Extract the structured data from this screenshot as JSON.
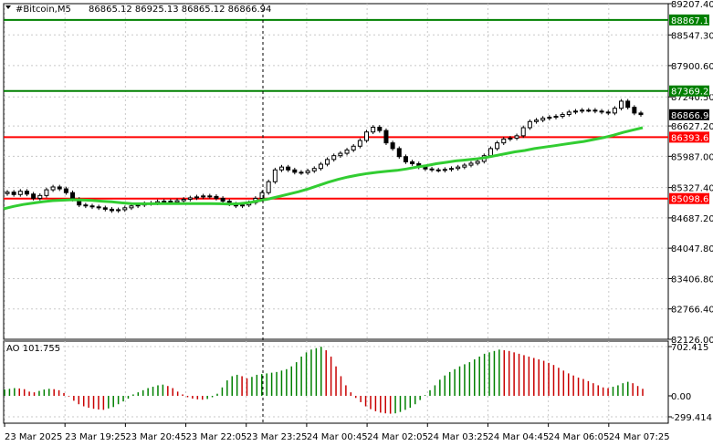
{
  "header": {
    "symbol": "#Bitcoin,M5",
    "ohlc": "86865.12 86925.13 86865.12 86866.94"
  },
  "colors": {
    "background": "#ffffff",
    "grid": "#c8c8c8",
    "frame": "#000000",
    "candle": "#000000",
    "moving_average": "#32cd32",
    "support_resistance": "#ff0000",
    "upper_levels": "#008000",
    "ao_up": "#008000",
    "ao_down": "#c80000",
    "price_label_text": "#ffffff"
  },
  "chart_data": [
    {
      "type": "candlestick",
      "title": "#Bitcoin,M5",
      "yticks": [
        "89207.40",
        "88547.30",
        "87900.60",
        "87240.50",
        "86627.20",
        "85987.00",
        "85327.40",
        "84687.20",
        "84047.80",
        "83406.80",
        "82766.40",
        "82126.00"
      ],
      "ylim": [
        82126.0,
        89207.4
      ],
      "grid": true,
      "price_labels": [
        {
          "text": "88867.19",
          "value": 88867.19,
          "kind": "level",
          "color": "#008000"
        },
        {
          "text": "87369.28",
          "value": 87369.28,
          "kind": "level",
          "color": "#008000"
        },
        {
          "text": "86866.94",
          "value": 86866.94,
          "kind": "current",
          "color": "#000000"
        },
        {
          "text": "86393.65",
          "value": 86393.65,
          "kind": "level",
          "color": "#ff0000"
        },
        {
          "text": "85098.61",
          "value": 85098.61,
          "kind": "level",
          "color": "#ff0000"
        }
      ],
      "series": [
        {
          "kind": "close_price",
          "values": [
            85230,
            85180,
            85250,
            85190,
            85100,
            85160,
            85280,
            85340,
            85300,
            85220,
            85080,
            84960,
            84940,
            84920,
            84900,
            84870,
            84840,
            84860,
            84900,
            84940,
            84960,
            84990,
            85000,
            85030,
            85040,
            85020,
            85050,
            85080,
            85110,
            85130,
            85150,
            85140,
            85100,
            85040,
            84980,
            84940,
            84960,
            85010,
            85100,
            85220,
            85450,
            85700,
            85760,
            85700,
            85650,
            85640,
            85680,
            85730,
            85820,
            85920,
            86000,
            86050,
            86120,
            86200,
            86320,
            86500,
            86600,
            86530,
            86270,
            86150,
            85980,
            85870,
            85830,
            85760,
            85720,
            85700,
            85690,
            85710,
            85730,
            85760,
            85800,
            85840,
            85880,
            86000,
            86150,
            86270,
            86350,
            86370,
            86420,
            86590,
            86720,
            86750,
            86790,
            86810,
            86830,
            86870,
            86920,
            86940,
            86960,
            86960,
            86940,
            86920,
            86900,
            87000,
            87150,
            87020,
            86900,
            86866.94
          ]
        },
        {
          "kind": "moving_average",
          "values": [
            84880,
            84930,
            84970,
            85000,
            85030,
            85050,
            85060,
            85070,
            85065,
            85055,
            85040,
            85025,
            85005,
            84990,
            84985,
            84985,
            84990,
            84990,
            84990,
            84990,
            84990,
            84990,
            84985,
            84980,
            84990,
            85010,
            85050,
            85090,
            85140,
            85190,
            85240,
            85300,
            85370,
            85440,
            85500,
            85550,
            85590,
            85625,
            85650,
            85670,
            85690,
            85720,
            85760,
            85790,
            85830,
            85860,
            85890,
            85910,
            85930,
            85960,
            86000,
            86040,
            86080,
            86110,
            86150,
            86180,
            86210,
            86240,
            86270,
            86300,
            86340,
            86380,
            86430,
            86490,
            86540,
            86590
          ]
        }
      ]
    },
    {
      "type": "bar",
      "title": "AO 101.755",
      "yticks": [
        "702.415",
        "0.00",
        "-299.414"
      ],
      "ylim": [
        -299.414,
        702.415
      ],
      "xticks": [
        "23 Mar 2025",
        "23 Mar 19:25",
        "23 Mar 20:45",
        "23 Mar 22:05",
        "23 Mar 23:25",
        "24 Mar 00:45",
        "24 Mar 02:05",
        "24 Mar 03:25",
        "24 Mar 04:45",
        "24 Mar 06:05",
        "24 Mar 07:25"
      ],
      "values": [
        90,
        100,
        110,
        105,
        95,
        60,
        50,
        70,
        90,
        100,
        95,
        80,
        40,
        -10,
        -70,
        -120,
        -150,
        -170,
        -185,
        -195,
        -200,
        -180,
        -160,
        -120,
        -80,
        -40,
        20,
        50,
        80,
        110,
        130,
        150,
        160,
        140,
        110,
        60,
        20,
        -20,
        -40,
        -50,
        -55,
        -45,
        -20,
        30,
        120,
        220,
        280,
        300,
        280,
        250,
        270,
        300,
        310,
        320,
        330,
        340,
        360,
        380,
        420,
        480,
        560,
        620,
        660,
        680,
        700,
        650,
        560,
        420,
        280,
        150,
        50,
        -30,
        -90,
        -150,
        -190,
        -220,
        -240,
        -250,
        -255,
        -250,
        -230,
        -200,
        -170,
        -120,
        -60,
        10,
        80,
        150,
        230,
        290,
        340,
        380,
        420,
        450,
        480,
        520,
        560,
        600,
        620,
        640,
        660,
        650,
        640,
        620,
        600,
        580,
        560,
        540,
        520,
        500,
        470,
        440,
        400,
        360,
        320,
        290,
        260,
        240,
        210,
        180,
        150,
        120,
        110,
        130,
        150,
        180,
        200,
        180,
        140,
        100
      ]
    }
  ]
}
